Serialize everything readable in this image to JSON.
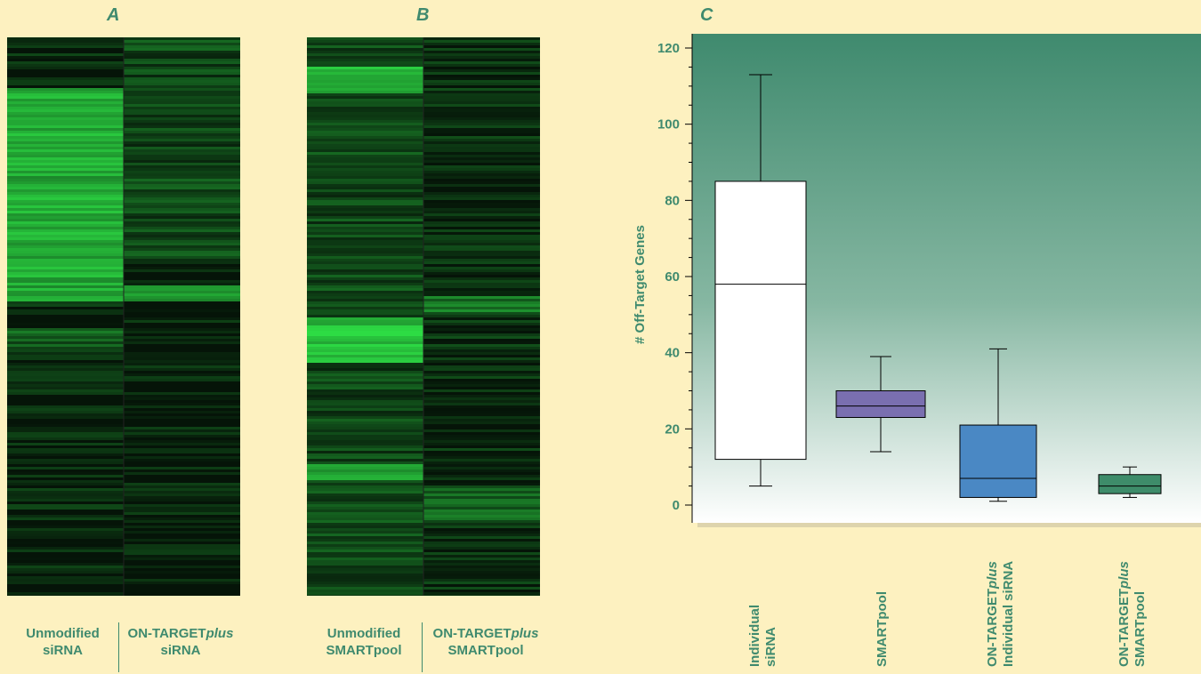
{
  "panels": {
    "a": {
      "letter": "A",
      "left_label_1": "Unmodified",
      "left_label_2": "siRNA",
      "right_label_1": "ON-TARGET",
      "right_label_1_italic": "plus",
      "right_label_2": "siRNA"
    },
    "b": {
      "letter": "B",
      "left_label_1": "Unmodified",
      "left_label_2": "SMARTpool",
      "right_label_1": "ON-TARGET",
      "right_label_1_italic": "plus",
      "right_label_2": "SMARTpool"
    },
    "c": {
      "letter": "C"
    }
  },
  "colors": {
    "background": "#fdf1c0",
    "text": "#3f8a6e",
    "heat_bright": "#39d36a",
    "plot_bg_top": "#3f8a6e",
    "plot_bg_bottom": "#ffffff"
  },
  "chart_data": {
    "type": "boxplot",
    "title": "",
    "xlabel": "",
    "ylabel": "# Off-Target Genes",
    "ylim": [
      0,
      120
    ],
    "yticks": [
      0,
      20,
      40,
      60,
      80,
      100,
      120
    ],
    "grid": false,
    "categories": [
      {
        "line1": "Individual",
        "line2": "siRNA",
        "italic": ""
      },
      {
        "line1": "SMARTpool",
        "line2": "",
        "italic": ""
      },
      {
        "line1": "ON-TARGET",
        "line2": "Individual siRNA",
        "italic": "plus"
      },
      {
        "line1": "ON-TARGET",
        "line2": "SMARTpool",
        "italic": "plus"
      }
    ],
    "boxes": [
      {
        "whisker_low": 5,
        "q1": 12,
        "median": 58,
        "q3": 85,
        "whisker_high": 113,
        "color": "#ffffff"
      },
      {
        "whisker_low": 14,
        "q1": 23,
        "median": 26,
        "q3": 30,
        "whisker_high": 39,
        "color": "#7a6fb0"
      },
      {
        "whisker_low": 1,
        "q1": 2,
        "median": 7,
        "q3": 21,
        "whisker_high": 41,
        "color": "#4a88c4"
      },
      {
        "whisker_low": 2,
        "q1": 3,
        "median": 5,
        "q3": 8,
        "whisker_high": 10,
        "color": "#3e8c6a"
      }
    ]
  }
}
